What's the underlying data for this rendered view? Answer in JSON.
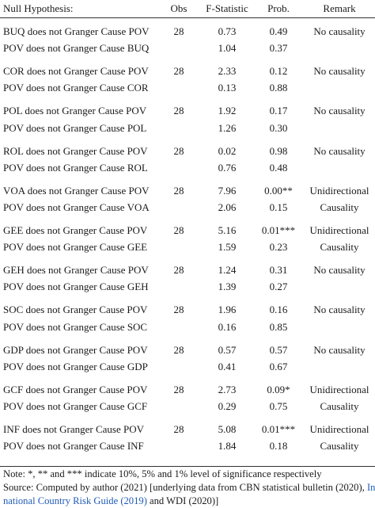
{
  "headers": {
    "hypothesis": "Null Hypothesis:",
    "obs": "Obs",
    "fstat": "F-Statistic",
    "prob": "Prob.",
    "remark": "Remark"
  },
  "groups": [
    {
      "r1": {
        "hyp": "BUQ does not Granger Cause POV",
        "obs": "28",
        "f": "0.73",
        "p": "0.49",
        "remark": "No causality"
      },
      "r2": {
        "hyp": "POV does not Granger Cause BUQ",
        "f": "1.04",
        "p": "0.37",
        "remark": ""
      }
    },
    {
      "r1": {
        "hyp": "COR does not Granger Cause POV",
        "obs": "28",
        "f": "2.33",
        "p": "0.12",
        "remark": "No causality"
      },
      "r2": {
        "hyp": "POV does not Granger Cause COR",
        "f": "0.13",
        "p": "0.88",
        "remark": ""
      }
    },
    {
      "r1": {
        "hyp": "POL does not Granger Cause POV",
        "obs": "28",
        "f": "1.92",
        "p": "0.17",
        "remark": "No causality"
      },
      "r2": {
        "hyp": "POV does not Granger Cause POL",
        "f": "1.26",
        "p": "0.30",
        "remark": ""
      }
    },
    {
      "r1": {
        "hyp": "ROL does not Granger Cause POV",
        "obs": "28",
        "f": "0.02",
        "p": "0.98",
        "remark": "No causality"
      },
      "r2": {
        "hyp": "POV does not Granger Cause ROL",
        "f": "0.76",
        "p": "0.48",
        "remark": ""
      }
    },
    {
      "r1": {
        "hyp": "VOA does not Granger Cause POV",
        "obs": "28",
        "f": "7.96",
        "p": "0.00**",
        "remark": "Unidirectional"
      },
      "r2": {
        "hyp": "POV does not Granger Cause VOA",
        "f": "2.06",
        "p": "0.15",
        "remark": "Causality"
      }
    },
    {
      "r1": {
        "hyp": "GEE does not Granger Cause POV",
        "obs": "28",
        "f": "5.16",
        "p": "0.01***",
        "remark": "Unidirectional"
      },
      "r2": {
        "hyp": "POV does not Granger Cause GEE",
        "f": "1.59",
        "p": "0.23",
        "remark": "Causality"
      }
    },
    {
      "r1": {
        "hyp": "GEH does not Granger Cause POV",
        "obs": "28",
        "f": "1.24",
        "p": "0.31",
        "remark": "No causality"
      },
      "r2": {
        "hyp": "POV does not Granger Cause GEH",
        "f": "1.39",
        "p": "0.27",
        "remark": ""
      }
    },
    {
      "r1": {
        "hyp": "SOC does not Granger Cause POV",
        "obs": "28",
        "f": "1.96",
        "p": "0.16",
        "remark": "No causality"
      },
      "r2": {
        "hyp": "POV does not Granger Cause SOC",
        "f": "0.16",
        "p": "0.85",
        "remark": ""
      }
    },
    {
      "r1": {
        "hyp": "GDP does not Granger Cause POV",
        "obs": "28",
        "f": "0.57",
        "p": "0.57",
        "remark": "No causality"
      },
      "r2": {
        "hyp": "POV does not Granger Cause GDP",
        "f": "0.41",
        "p": "0.67",
        "remark": ""
      }
    },
    {
      "r1": {
        "hyp": "GCF does not Granger Cause POV",
        "obs": "28",
        "f": "2.73",
        "p": "0.09*",
        "remark": "Unidirectional"
      },
      "r2": {
        "hyp": "POV does not Granger Cause GCF",
        "f": "0.29",
        "p": "0.75",
        "remark": "Causality"
      }
    },
    {
      "r1": {
        "hyp": "INF does not Granger Cause POV",
        "obs": "28",
        "f": "5.08",
        "p": "0.01***",
        "remark": "Unidirectional"
      },
      "r2": {
        "hyp": "POV does not Granger Cause INF",
        "f": "1.84",
        "p": "0.18",
        "remark": "Causality"
      }
    }
  ],
  "notes": {
    "line1": "Note: *, ** and *** indicate 10%, 5% and 1% level of significance respectively",
    "line2a": "Source: Computed by author (2021) [underlying data from CBN statistical bulletin (2020), ",
    "line2b": "Inter-",
    "line3a": "national Country Risk Guide (2019)",
    "line3b": " and WDI (2020)]"
  }
}
